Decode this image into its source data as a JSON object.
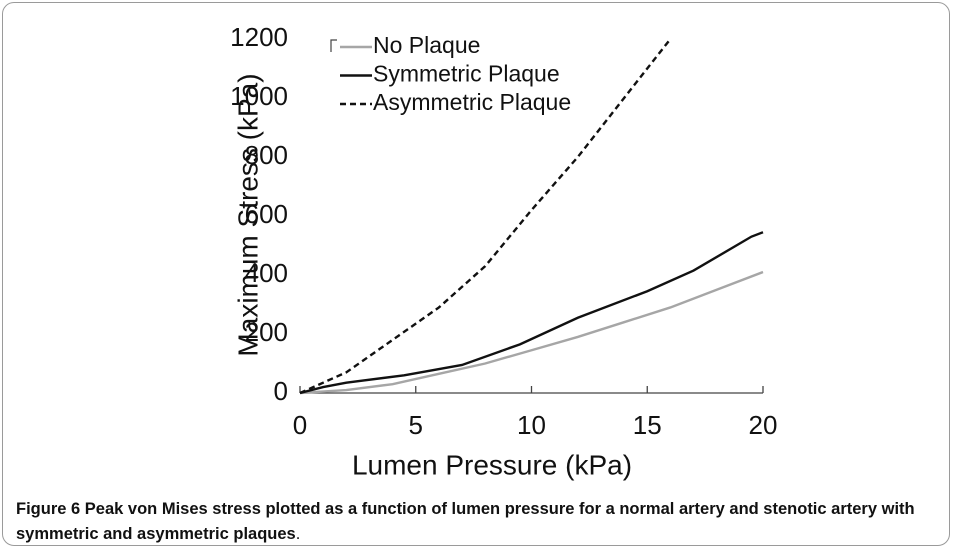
{
  "chart_data": {
    "type": "line",
    "xlabel": "Lumen Pressure (kPa)",
    "ylabel": "Maximum  Stress (kPa)",
    "xlim": [
      0,
      20
    ],
    "xticks": [
      0,
      5,
      10,
      15,
      20
    ],
    "ylim": [
      0,
      1200
    ],
    "yticks": [
      0,
      200,
      400,
      600,
      800,
      1000,
      1200
    ],
    "legend": "top-left",
    "series": [
      {
        "name": "No Plaque",
        "color": "#a6a6a6",
        "dash": "solid",
        "x": [
          0,
          2,
          4,
          6,
          8,
          10,
          12,
          14,
          16,
          18,
          20
        ],
        "values": [
          0,
          10,
          30,
          65,
          100,
          145,
          190,
          240,
          290,
          350,
          410
        ]
      },
      {
        "name": "Symmetric Plaque",
        "color": "#111111",
        "dash": "solid",
        "x": [
          0,
          1,
          2,
          4.5,
          7,
          9.5,
          12,
          15,
          17,
          19.5,
          20
        ],
        "values": [
          0,
          20,
          35,
          60,
          95,
          165,
          255,
          345,
          415,
          530,
          545
        ]
      },
      {
        "name": "Asymmetric Plaque",
        "color": "#111111",
        "dash": "dashed",
        "x": [
          0,
          2,
          4,
          6,
          8,
          10,
          12,
          14,
          16
        ],
        "values": [
          0,
          70,
          180,
          290,
          430,
          620,
          800,
          1000,
          1200
        ]
      }
    ]
  },
  "caption": {
    "label": "Figure 6",
    "text": "Peak von Mises stress plotted as a function of lumen pressure for a normal artery and stenotic artery with symmetric and asymmetric plaques",
    "end": "."
  }
}
